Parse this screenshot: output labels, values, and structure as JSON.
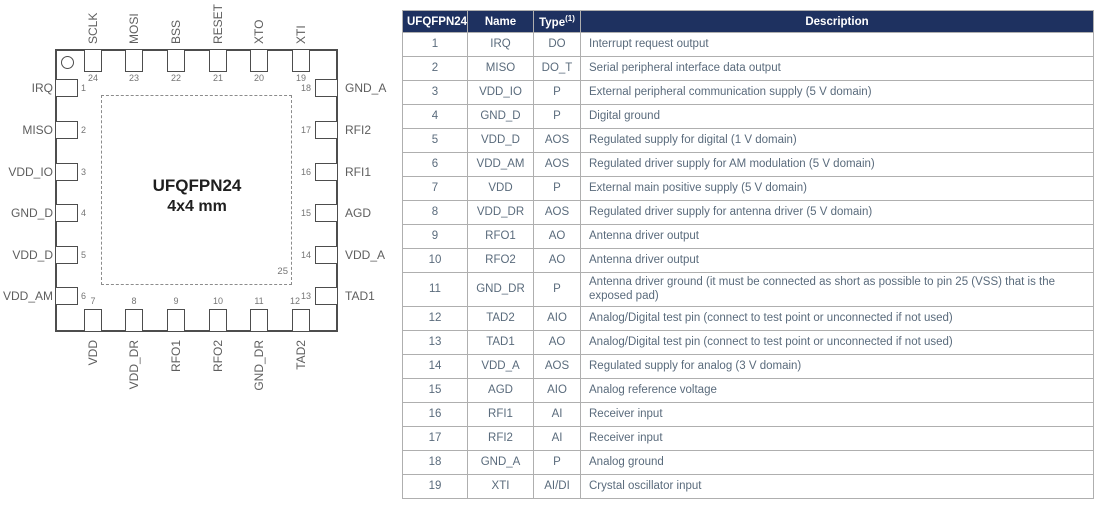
{
  "colors": {
    "header_bg": "#1E3160",
    "body_text": "#5A6B7C",
    "table_border": "#AFAFAF",
    "diagram_line": "#4D4D4D",
    "diagram_text": "#5E5E5E"
  },
  "chip": {
    "title": "UFQFPN24",
    "subtitle": "4x4 mm",
    "exposed_pad_num": "25",
    "top_pins": [
      {
        "num": "24",
        "label": "SCLK"
      },
      {
        "num": "23",
        "label": "MOSI"
      },
      {
        "num": "22",
        "label": "BSS"
      },
      {
        "num": "21",
        "label": "RESET"
      },
      {
        "num": "20",
        "label": "XTO"
      },
      {
        "num": "19",
        "label": "XTI"
      }
    ],
    "left_pins": [
      {
        "num": "1",
        "label": "IRQ"
      },
      {
        "num": "2",
        "label": "MISO"
      },
      {
        "num": "3",
        "label": "VDD_IO"
      },
      {
        "num": "4",
        "label": "GND_D"
      },
      {
        "num": "5",
        "label": "VDD_D"
      },
      {
        "num": "6",
        "label": "VDD_AM"
      }
    ],
    "right_pins": [
      {
        "num": "18",
        "label": "GND_A"
      },
      {
        "num": "17",
        "label": "RFI2"
      },
      {
        "num": "16",
        "label": "RFI1"
      },
      {
        "num": "15",
        "label": "AGD"
      },
      {
        "num": "14",
        "label": "VDD_A"
      },
      {
        "num": "13",
        "label": "TAD1"
      }
    ],
    "bottom_pins": [
      {
        "num": "7",
        "label": "VDD"
      },
      {
        "num": "8",
        "label": "VDD_DR"
      },
      {
        "num": "9",
        "label": "RFO1"
      },
      {
        "num": "10",
        "label": "RFO2"
      },
      {
        "num": "11",
        "label": "GND_DR"
      },
      {
        "num": "12",
        "label": "TAD2"
      }
    ]
  },
  "table": {
    "headers": {
      "pin": "UFQFPN24",
      "name": "Name",
      "type": "Type",
      "type_sup": "(1)",
      "desc": "Description"
    },
    "rows": [
      {
        "pin": "1",
        "name": "IRQ",
        "type": "DO",
        "desc": "Interrupt request output"
      },
      {
        "pin": "2",
        "name": "MISO",
        "type": "DO_T",
        "desc": "Serial peripheral interface data output"
      },
      {
        "pin": "3",
        "name": "VDD_IO",
        "type": "P",
        "desc": "External peripheral communication supply (5 V domain)"
      },
      {
        "pin": "4",
        "name": "GND_D",
        "type": "P",
        "desc": "Digital ground"
      },
      {
        "pin": "5",
        "name": "VDD_D",
        "type": "AOS",
        "desc": "Regulated supply for digital (1 V domain)"
      },
      {
        "pin": "6",
        "name": "VDD_AM",
        "type": "AOS",
        "desc": "Regulated driver supply for AM modulation (5 V domain)"
      },
      {
        "pin": "7",
        "name": "VDD",
        "type": "P",
        "desc": "External main positive supply (5 V domain)"
      },
      {
        "pin": "8",
        "name": "VDD_DR",
        "type": "AOS",
        "desc": "Regulated driver supply for antenna driver (5 V domain)"
      },
      {
        "pin": "9",
        "name": "RFO1",
        "type": "AO",
        "desc": "Antenna driver output"
      },
      {
        "pin": "10",
        "name": "RFO2",
        "type": "AO",
        "desc": "Antenna driver output"
      },
      {
        "pin": "11",
        "name": "GND_DR",
        "type": "P",
        "desc": "Antenna driver ground (it must be connected as short as possible to pin 25 (VSS) that is the exposed pad)"
      },
      {
        "pin": "12",
        "name": "TAD2",
        "type": "AIO",
        "desc": "Analog/Digital test pin (connect to test point or unconnected if not used)"
      },
      {
        "pin": "13",
        "name": "TAD1",
        "type": "AO",
        "desc": "Analog/Digital test pin (connect to test point or unconnected if not used)"
      },
      {
        "pin": "14",
        "name": "VDD_A",
        "type": "AOS",
        "desc": "Regulated supply for analog (3 V domain)"
      },
      {
        "pin": "15",
        "name": "AGD",
        "type": "AIO",
        "desc": "Analog reference voltage"
      },
      {
        "pin": "16",
        "name": "RFI1",
        "type": "AI",
        "desc": "Receiver input"
      },
      {
        "pin": "17",
        "name": "RFI2",
        "type": "AI",
        "desc": "Receiver input"
      },
      {
        "pin": "18",
        "name": "GND_A",
        "type": "P",
        "desc": "Analog ground"
      },
      {
        "pin": "19",
        "name": "XTI",
        "type": "AI/DI",
        "desc": "Crystal oscillator input"
      }
    ]
  }
}
